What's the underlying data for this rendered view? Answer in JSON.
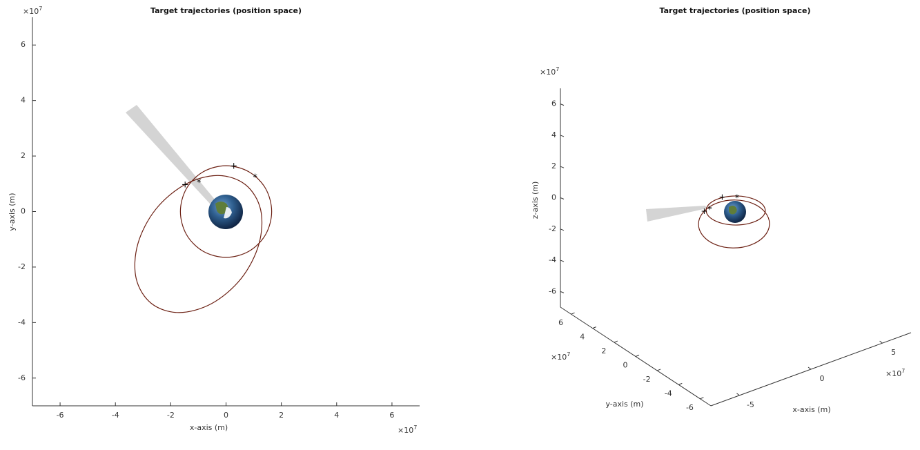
{
  "chart_data": [
    {
      "type": "line",
      "title": "Target trajectories (position space)",
      "xlabel": "x-axis (m)",
      "ylabel": "y-axis (m)",
      "x_exponent": {
        "base": "×10",
        "power": "7"
      },
      "y_exponent": {
        "base": "×10",
        "power": "7"
      },
      "xlim": [
        -7,
        7
      ],
      "ylim": [
        -7,
        7
      ],
      "xticks": [
        -6,
        -4,
        -2,
        0,
        2,
        4,
        6
      ],
      "yticks": [
        -6,
        -4,
        -2,
        0,
        2,
        4,
        6
      ],
      "series": [
        {
          "color": "#6b1f12",
          "x": [
            1.65,
            1.43,
            0.83,
            0,
            -0.83,
            -1.43,
            -1.65,
            -1.43,
            -0.83,
            0,
            0.83,
            1.43,
            1.65
          ],
          "y": [
            0,
            0.83,
            1.43,
            1.65,
            1.43,
            0.83,
            0,
            -0.83,
            -1.43,
            -1.65,
            -1.43,
            -0.83,
            0
          ]
        },
        {
          "color": "#6b1f12",
          "x": [
            -0.3,
            0.7,
            1.25,
            1.19,
            0.55,
            -0.51,
            -1.7,
            -2.7,
            -3.25,
            -3.19,
            -2.55,
            -1.49,
            -0.3
          ],
          "y": [
            1.3,
            0.97,
            0.07,
            -1.17,
            -2.41,
            -3.31,
            -3.64,
            -3.31,
            -2.41,
            -1.17,
            0.07,
            0.97,
            1.3
          ]
        }
      ],
      "markers": [
        {
          "symbol": "+",
          "x": 0.28,
          "y": 1.63
        },
        {
          "symbol": "*",
          "x": 1.05,
          "y": 1.28
        },
        {
          "symbol": "+",
          "x": -1.48,
          "y": 0.96
        },
        {
          "symbol": "*",
          "x": -0.98,
          "y": 1.1
        }
      ]
    },
    {
      "type": "line3d",
      "title": "Target trajectories (position space)",
      "xlabel": "x-axis (m)",
      "ylabel": "y-axis (m)",
      "zlabel": "z-axis (m)",
      "x_exponent": {
        "base": "×10",
        "power": "7"
      },
      "y_exponent": {
        "base": "×10",
        "power": "7"
      },
      "z_exponent": {
        "base": "×10",
        "power": "7"
      },
      "xlim": [
        -7,
        7
      ],
      "ylim": [
        -7,
        7
      ],
      "zlim": [
        -7,
        7
      ],
      "xticks": [
        -5,
        0,
        5
      ],
      "yticks": [
        6,
        4,
        2,
        0,
        -2,
        -4,
        -6
      ],
      "zticks": [
        6,
        4,
        2,
        0,
        -2,
        -4,
        -6
      ],
      "series": [
        {
          "color": "#6b1f12",
          "x": [
            1.65,
            1.43,
            0.83,
            0,
            -0.83,
            -1.43,
            -1.65,
            -1.43,
            -0.83,
            0,
            0.83,
            1.43,
            1.65
          ],
          "y": [
            0,
            0.83,
            1.43,
            1.65,
            1.43,
            0.83,
            0,
            -0.83,
            -1.43,
            -1.65,
            -1.43,
            -0.83,
            0
          ],
          "z": [
            0,
            0,
            0,
            0,
            0,
            0,
            0,
            0,
            0,
            0,
            0,
            0,
            0
          ]
        },
        {
          "color": "#6b1f12",
          "x": [
            -0.3,
            0.7,
            1.25,
            1.19,
            0.55,
            -0.51,
            -1.7,
            -2.7,
            -3.25,
            -3.19,
            -2.55,
            -1.49,
            -0.3
          ],
          "y": [
            1.3,
            0.97,
            0.07,
            -1.17,
            -2.41,
            -3.31,
            -3.64,
            -3.31,
            -2.41,
            -1.17,
            0.07,
            0.97,
            1.3
          ],
          "z": [
            0,
            0,
            0,
            0,
            0,
            0,
            0,
            0,
            0,
            0,
            0,
            0,
            0
          ]
        }
      ],
      "markers": [
        {
          "symbol": "+",
          "x": 0.28,
          "y": 1.63,
          "z": 0
        },
        {
          "symbol": "*",
          "x": 1.05,
          "y": 1.28,
          "z": 0
        },
        {
          "symbol": "+",
          "x": -1.48,
          "y": 0.96,
          "z": 0
        },
        {
          "symbol": "*",
          "x": -0.98,
          "y": 1.1,
          "z": 0
        }
      ]
    }
  ]
}
